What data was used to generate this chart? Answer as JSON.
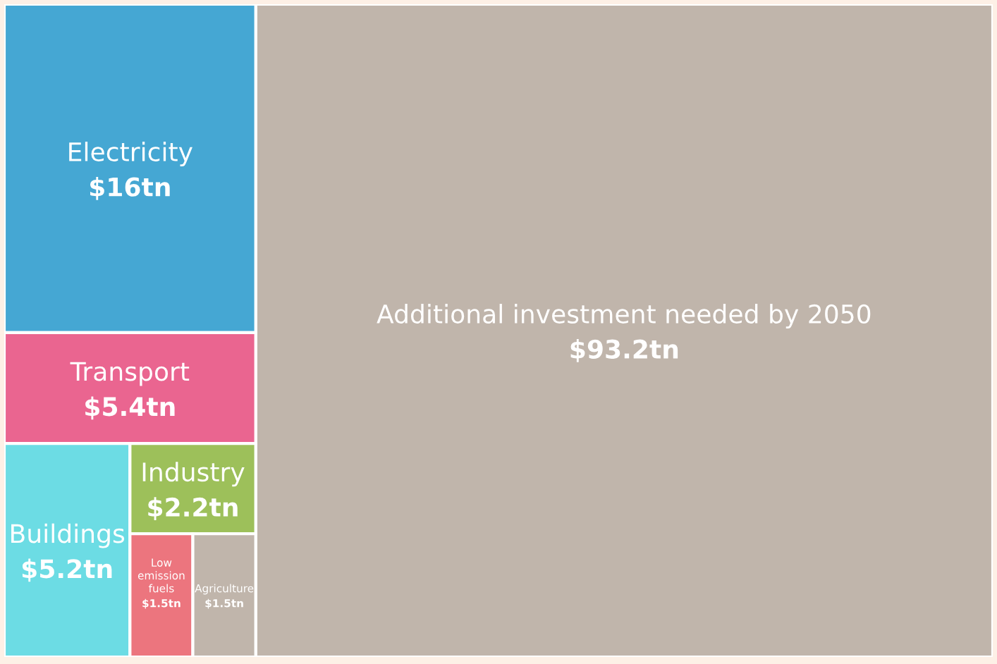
{
  "chart_data": {
    "type": "other",
    "categories": [
      "Additional investment needed by 2050",
      "Electricity",
      "Transport",
      "Buildings",
      "Industry",
      "Low\nemission\nfuels",
      "Agriculture"
    ],
    "values": [
      93.2,
      16,
      5.4,
      5.2,
      2.2,
      1.5,
      1.5
    ],
    "value_labels": [
      "$93.2tn",
      "$16tn",
      "$5.4tn",
      "$5.2tn",
      "$2.2tn",
      "$1.5tn",
      "$1.5tn"
    ],
    "colors": [
      "#c0b5ab",
      "#45a7d3",
      "#ea6590",
      "#6cdce4",
      "#9dc05a",
      "#ec757e",
      "#c0b5ab"
    ]
  }
}
